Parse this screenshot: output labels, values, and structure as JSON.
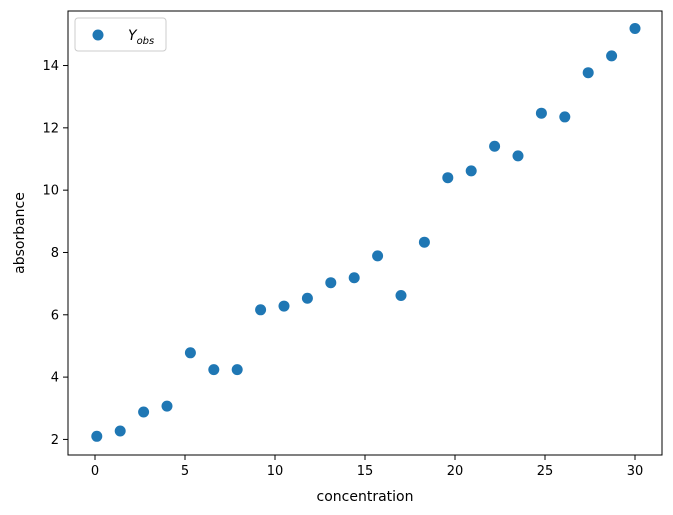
{
  "chart_data": {
    "type": "scatter",
    "title": "",
    "xlabel": "concentration",
    "ylabel": "absorbance",
    "xlim": [
      -1.5,
      31.5
    ],
    "ylim": [
      1.5,
      15.75
    ],
    "xticks": [
      0,
      5,
      10,
      15,
      20,
      25,
      30
    ],
    "yticks": [
      2,
      4,
      6,
      8,
      10,
      12,
      14
    ],
    "grid": false,
    "legend_position": "top-left",
    "series": [
      {
        "name": "Y",
        "name_subscript": "obs",
        "color": "#1f77b4",
        "x": [
          0.1,
          1.4,
          2.7,
          4.0,
          5.3,
          6.6,
          7.9,
          9.2,
          10.5,
          11.8,
          13.1,
          14.4,
          15.7,
          17.0,
          18.3,
          19.6,
          20.9,
          22.2,
          23.5,
          24.8,
          26.1,
          27.4,
          28.7,
          30.0
        ],
        "y": [
          2.1,
          2.27,
          2.88,
          3.07,
          4.78,
          4.24,
          4.24,
          6.16,
          6.28,
          6.53,
          7.03,
          7.19,
          7.89,
          6.62,
          8.33,
          10.4,
          10.62,
          11.41,
          11.1,
          12.47,
          12.35,
          13.77,
          14.31,
          15.19
        ]
      }
    ]
  }
}
